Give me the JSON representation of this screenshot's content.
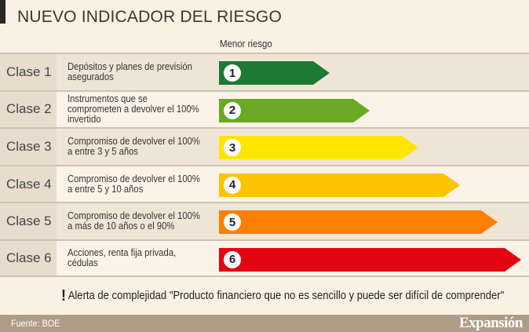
{
  "title": "NUEVO INDICADOR DEL RIESGO",
  "subtitle": "Menor riesgo",
  "classes": [
    {
      "label": "Clase 1",
      "desc": "Depósitos y planes de previsión asegurados",
      "num": "1",
      "color": "#1d7a34",
      "level": 1
    },
    {
      "label": "Clase 2",
      "desc": "Instrumentos que se comprometen a devolver el 100% invertido",
      "num": "2",
      "color": "#69a925",
      "level": 2
    },
    {
      "label": "Clase 3",
      "desc": "Compromiso de devolver el 100% a entre 3 y 5 años",
      "num": "3",
      "color": "#ffe500",
      "level": 3
    },
    {
      "label": "Clase 4",
      "desc": "Compromiso de devolver el 100% a entre 5 y 10 años",
      "num": "4",
      "color": "#fcc400",
      "level": 4
    },
    {
      "label": "Clase 5",
      "desc": "Compromiso de devolver el 100% a más de 10 años o el 90%",
      "num": "5",
      "color": "#fb7f00",
      "level": 5
    },
    {
      "label": "Clase 6",
      "desc": "Acciones, renta fija privada, cédulas",
      "num": "6",
      "color": "#e30511",
      "level": 6
    }
  ],
  "alert": {
    "icon": "exclamation-icon",
    "symbol": "!",
    "text": "Alerta de complejidad \"Producto financiero que no es sencillo y puede ser difícil de comprender\""
  },
  "footer": {
    "source": "Fuente: BOE",
    "logo": "Expansión"
  }
}
